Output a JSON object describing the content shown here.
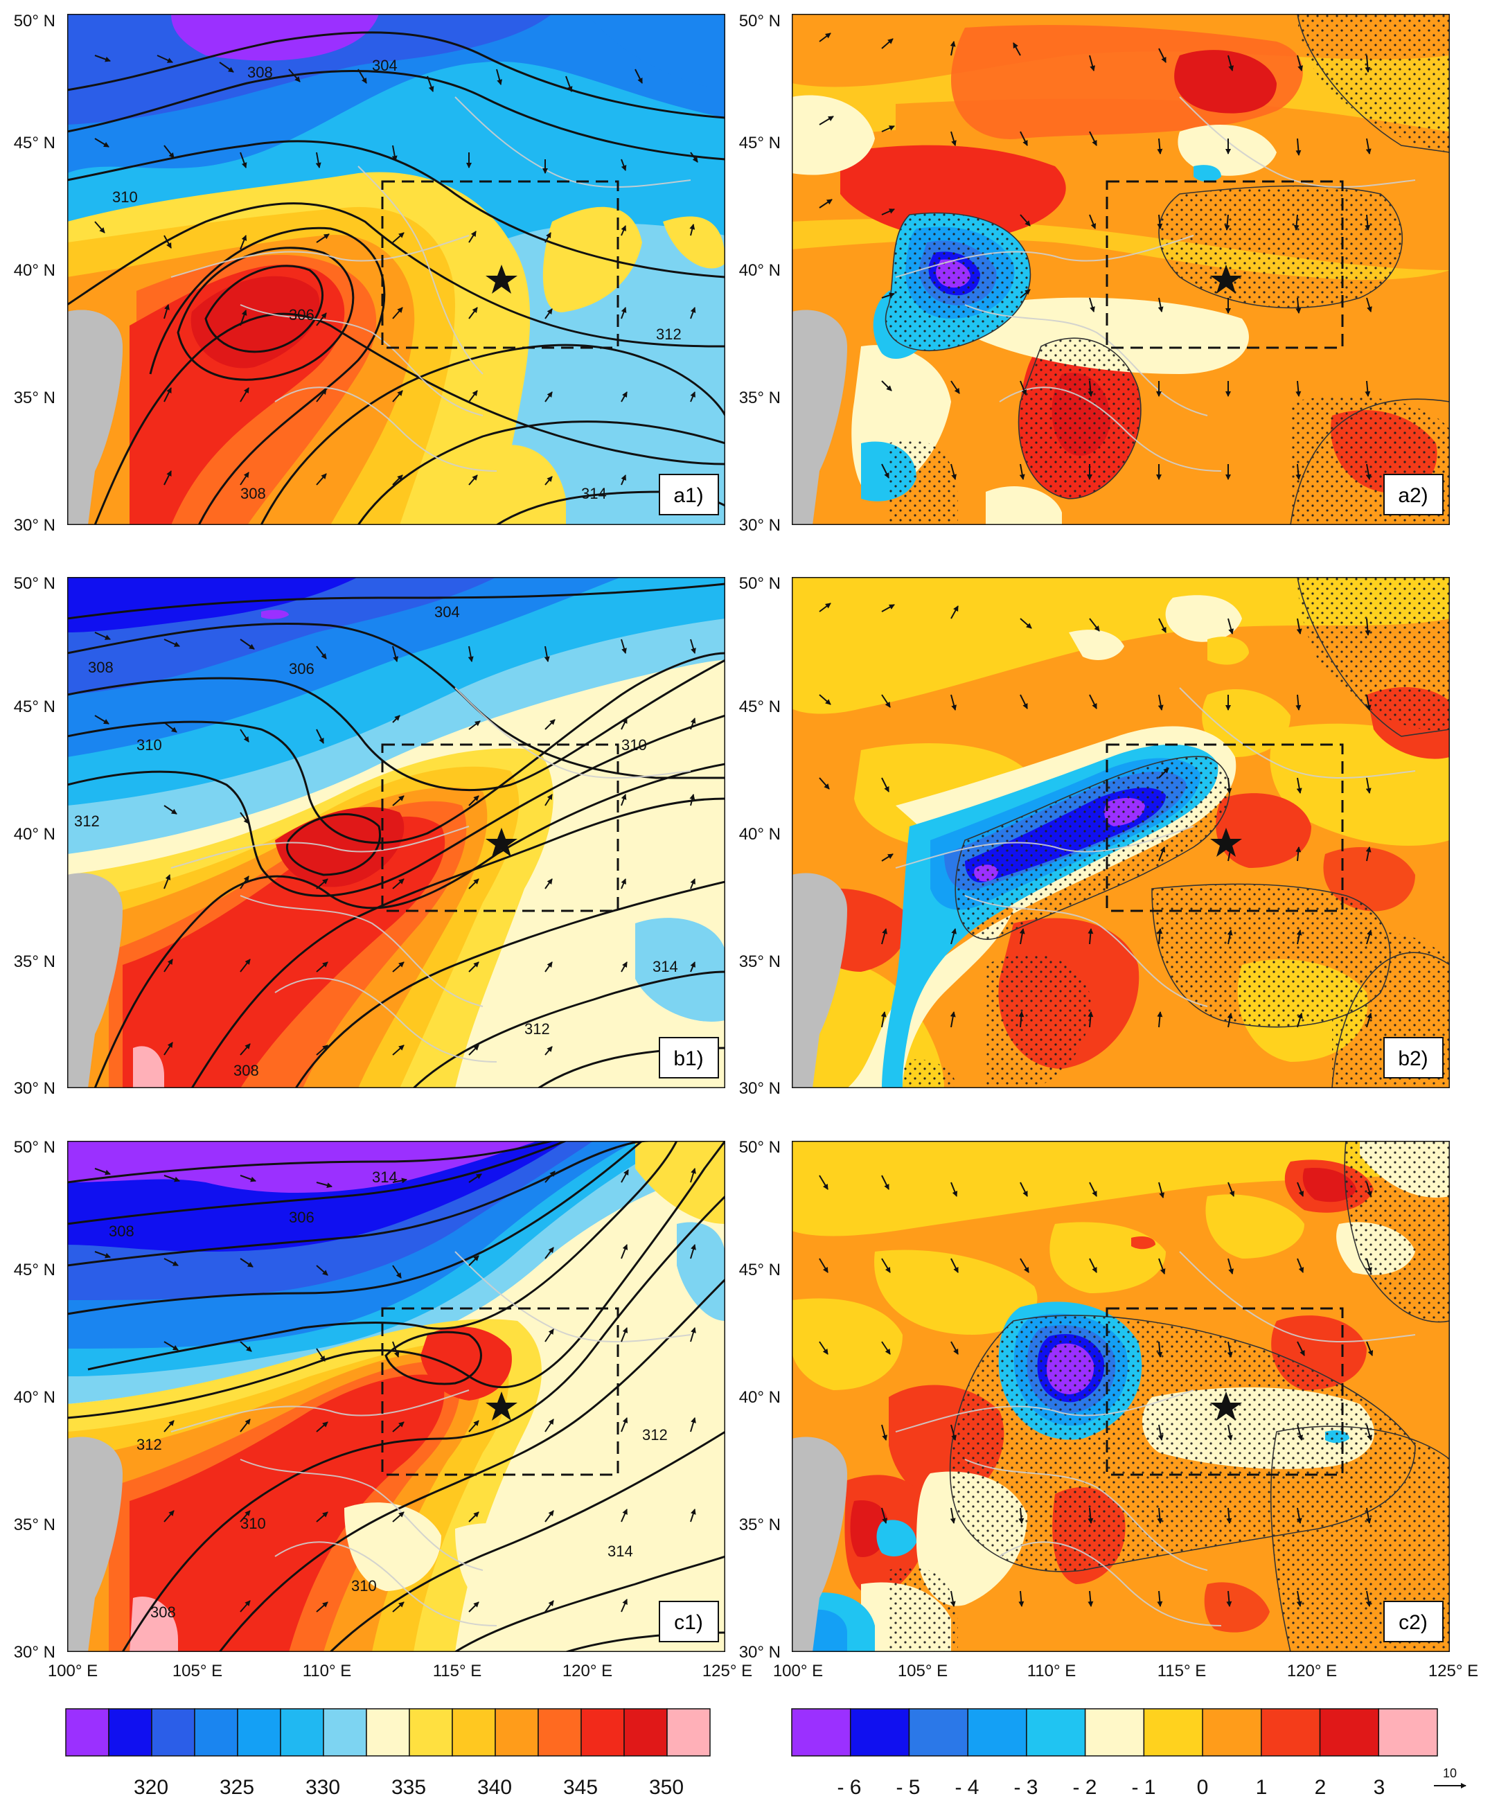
{
  "figure": {
    "latitude_labels": [
      "50° N",
      "45° N",
      "40° N",
      "35° N",
      "30° N"
    ],
    "longitude_labels": [
      "100° E",
      "105° E",
      "110° E",
      "115° E",
      "120° E",
      "125° E"
    ],
    "station_marker": "star-icon",
    "inner_box": "dashed rectangle",
    "land_mask_color": "#bdbdbd"
  },
  "panels": [
    {
      "id": "a1",
      "label": "a1)",
      "field": "theta-e",
      "contours": [
        "304",
        "308",
        "306",
        "310",
        "308",
        "312",
        "314"
      ]
    },
    {
      "id": "a2",
      "label": "a2)",
      "field": "anomaly"
    },
    {
      "id": "b1",
      "label": "b1)",
      "field": "theta-e",
      "contours": [
        "304",
        "306",
        "308",
        "310",
        "312",
        "310",
        "312",
        "314",
        "308"
      ]
    },
    {
      "id": "b2",
      "label": "b2)",
      "field": "anomaly"
    },
    {
      "id": "c1",
      "label": "c1)",
      "field": "theta-e",
      "contours": [
        "314",
        "308",
        "306",
        "312",
        "310",
        "312",
        "310",
        "314",
        "308"
      ]
    },
    {
      "id": "c2",
      "label": "c2)",
      "field": "anomaly"
    }
  ],
  "colorbar_left": {
    "colors": [
      "#9b30ff",
      "#1010f0",
      "#2b5ee8",
      "#1a85f0",
      "#14a0f5",
      "#20b8f2",
      "#7dd4f2",
      "#fff8c8",
      "#ffe040",
      "#ffc820",
      "#ff9c1a",
      "#ff6a20",
      "#f22a1a",
      "#e01818",
      "#ffb0b8"
    ],
    "labels": [
      "320",
      "325",
      "330",
      "335",
      "340",
      "345",
      "350"
    ]
  },
  "colorbar_right": {
    "colors": [
      "#9b30ff",
      "#1010f0",
      "#2b78e8",
      "#14a0f5",
      "#20c4f2",
      "#fff8c8",
      "#ffd21e",
      "#ff9c1a",
      "#f43c1a",
      "#e01818",
      "#ffb0b8"
    ],
    "labels": [
      "- 6",
      "- 5",
      "- 4",
      "- 3",
      "- 2",
      "- 1",
      "0",
      "1",
      "2",
      "3"
    ],
    "vector_reference": "10"
  }
}
